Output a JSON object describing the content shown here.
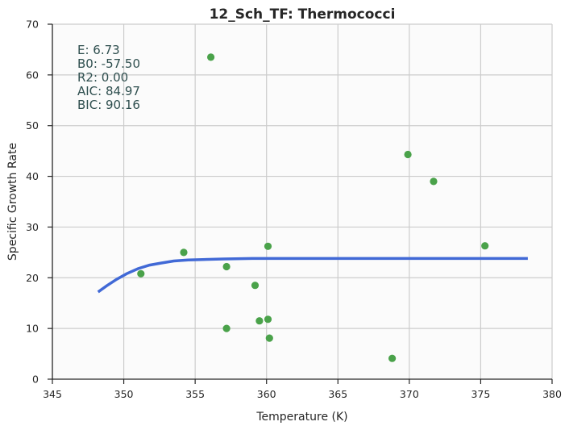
{
  "chart_data": {
    "type": "scatter",
    "title": "12_Sch_TF: Thermococci",
    "xlabel": "Temperature (K)",
    "ylabel": "Specific Growth Rate",
    "xlim": [
      345,
      380
    ],
    "ylim": [
      0,
      70
    ],
    "x_ticks": [
      "345",
      "350",
      "355",
      "360",
      "365",
      "370",
      "375",
      "380"
    ],
    "y_ticks": [
      "0",
      "10",
      "20",
      "30",
      "40",
      "50",
      "60",
      "70"
    ],
    "grid": true,
    "stats": [
      "E:  6.73",
      "B0:  -57.50",
      "R2:  0.00",
      "AIC: 84.97",
      "BIC: 90.16"
    ],
    "points": {
      "color": "#4aa24a",
      "x": [
        351.2,
        354.2,
        356.1,
        357.2,
        357.2,
        359.2,
        359.5,
        360.1,
        360.1,
        360.2,
        368.8,
        369.9,
        371.7,
        375.3
      ],
      "y": [
        20.8,
        25.0,
        63.5,
        22.2,
        10.0,
        18.5,
        11.5,
        26.2,
        11.8,
        8.1,
        4.1,
        44.3,
        39.0,
        26.3
      ]
    },
    "fit": {
      "color": "#4169d6",
      "x": [
        348.2,
        348.8,
        349.5,
        350.2,
        351.0,
        351.8,
        352.6,
        353.5,
        354.5,
        355.5,
        357.0,
        359.0,
        362.0,
        366.0,
        370.0,
        374.0,
        378.3
      ],
      "y": [
        17.2,
        18.4,
        19.7,
        20.8,
        21.8,
        22.5,
        22.9,
        23.3,
        23.5,
        23.6,
        23.7,
        23.8,
        23.8,
        23.8,
        23.8,
        23.8,
        23.8
      ]
    }
  }
}
